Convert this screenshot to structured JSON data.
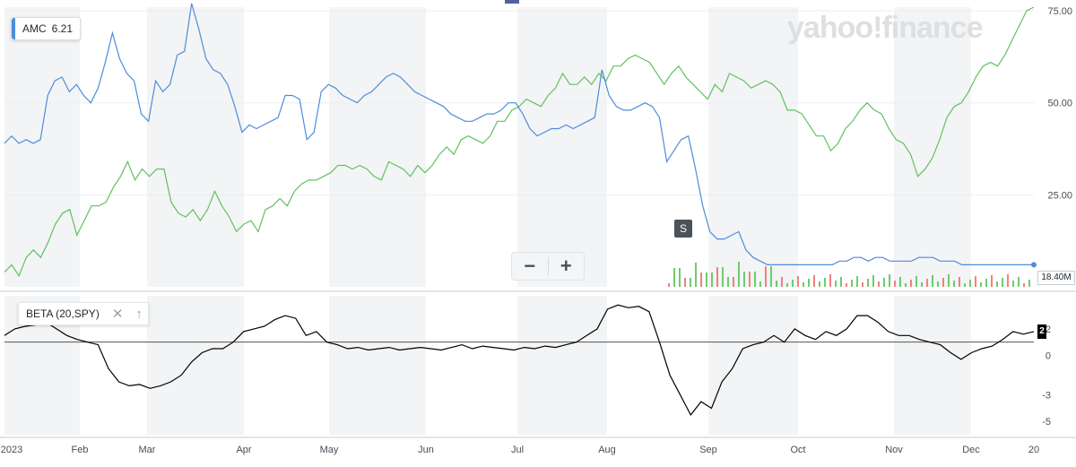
{
  "watermark": "yahoo!finance",
  "symbol_legend": {
    "symbol": "AMC",
    "value": "6.21"
  },
  "indicator_legend": {
    "label": "BETA (20,SPY)"
  },
  "split_marker": "S",
  "zoom": {
    "minus": "−",
    "plus": "+"
  },
  "price_badge": "18.40M",
  "beta_badge": "2",
  "colors": {
    "amc": "#4c8ddb",
    "comparison": "#60c160",
    "beta": "#000000",
    "vol_up": "#6dcc6d",
    "vol_down": "#f08080"
  },
  "chart_data": [
    {
      "type": "line",
      "title": "",
      "x_ticks": [
        "2023",
        "Feb",
        "Mar",
        "Apr",
        "May",
        "Jun",
        "Jul",
        "Aug",
        "Sep",
        "Oct",
        "Nov",
        "Dec",
        "20"
      ],
      "y_ticks": [
        "75.00",
        "50.00",
        "25.00"
      ],
      "ylim": [
        0,
        76
      ],
      "grid": true,
      "series": [
        {
          "name": "AMC",
          "y": [
            39,
            41,
            39,
            40,
            39,
            40,
            52,
            56,
            57,
            53,
            55,
            52,
            50,
            54,
            61,
            69,
            62,
            58,
            56,
            47,
            45,
            56,
            53,
            55,
            63,
            64,
            77,
            70,
            62,
            59,
            58,
            55,
            49,
            42,
            44,
            43,
            44,
            45,
            46,
            52,
            52,
            51,
            40,
            42,
            53,
            55,
            54,
            52,
            51,
            50,
            52,
            53,
            55,
            57,
            58,
            57,
            55,
            53,
            52,
            51,
            50,
            49,
            47,
            46,
            45,
            45,
            46,
            47,
            47,
            48,
            50,
            50,
            47,
            43,
            41,
            42,
            43,
            43,
            44,
            43,
            44,
            45,
            46,
            59,
            52,
            49,
            48,
            48,
            49,
            50,
            49,
            46,
            34,
            37,
            40,
            41,
            32,
            22,
            15,
            13,
            13,
            14,
            15,
            10,
            8,
            7,
            6,
            6,
            6,
            6,
            6,
            6,
            6,
            6,
            6,
            6,
            7,
            7,
            8,
            8,
            7,
            8,
            8,
            7,
            7,
            7,
            7,
            8,
            8,
            8,
            7,
            7,
            7,
            6,
            6,
            6,
            6,
            6,
            6,
            6,
            6,
            6,
            6,
            6
          ]
        },
        {
          "name": "",
          "y": [
            4,
            6,
            3,
            8,
            10,
            8,
            12,
            17,
            20,
            21,
            14,
            18,
            22,
            22,
            23,
            27,
            30,
            34,
            29,
            32,
            30,
            32,
            32,
            23,
            20,
            19,
            21,
            18,
            21,
            26,
            22,
            19,
            15,
            17,
            18,
            15,
            21,
            22,
            24,
            22,
            26,
            28,
            29,
            29,
            30,
            31,
            33,
            33,
            32,
            33,
            32,
            30,
            29,
            34,
            33,
            32,
            30,
            33,
            31,
            33,
            36,
            38,
            36,
            40,
            41,
            40,
            39,
            41,
            45,
            45,
            48,
            49,
            51,
            50,
            49,
            52,
            54,
            58,
            55,
            55,
            57,
            55,
            58,
            56,
            60,
            60,
            62,
            63,
            62,
            61,
            58,
            55,
            58,
            60,
            57,
            55,
            53,
            51,
            55,
            53,
            58,
            57,
            56,
            54,
            55,
            56,
            55,
            53,
            48,
            48,
            47,
            44,
            41,
            41,
            37,
            39,
            43,
            45,
            48,
            50,
            48,
            47,
            43,
            40,
            39,
            36,
            30,
            32,
            35,
            40,
            46,
            49,
            50,
            53,
            57,
            60,
            61,
            60,
            63,
            67,
            71,
            75,
            76
          ]
        }
      ]
    },
    {
      "type": "line",
      "title": "",
      "x_ticks": [
        "2023",
        "Feb",
        "Mar",
        "Apr",
        "May",
        "Jun",
        "Jul",
        "Aug",
        "Sep",
        "Oct",
        "Nov",
        "Dec",
        "20"
      ],
      "y_ticks": [
        "-5",
        "-3",
        "0",
        "2"
      ],
      "ylim": [
        -6,
        4.5
      ],
      "series": [
        {
          "name": "BETA (20,SPY)",
          "y": [
            1.5,
            2.0,
            2.2,
            2.3,
            2.5,
            2.0,
            1.5,
            1.2,
            1.0,
            0.8,
            -1.0,
            -2.0,
            -2.3,
            -2.2,
            -2.5,
            -2.3,
            -2.0,
            -1.5,
            -0.5,
            0.2,
            0.5,
            0.5,
            1.0,
            1.8,
            2.0,
            2.2,
            2.7,
            3.0,
            2.8,
            1.5,
            1.8,
            1.0,
            0.8,
            0.5,
            0.6,
            0.4,
            0.5,
            0.6,
            0.4,
            0.5,
            0.6,
            0.5,
            0.4,
            0.6,
            0.8,
            0.5,
            0.7,
            0.6,
            0.5,
            0.4,
            0.6,
            0.5,
            0.7,
            0.6,
            0.8,
            1.0,
            1.5,
            2.0,
            3.5,
            3.8,
            3.6,
            3.7,
            3.3,
            1.0,
            -1.5,
            -3.0,
            -4.5,
            -3.5,
            -4.0,
            -2.0,
            -1.0,
            0.5,
            0.8,
            1.0,
            1.5,
            1.0,
            2.0,
            1.5,
            1.2,
            1.8,
            1.5,
            2.0,
            3.0,
            3.0,
            2.5,
            1.8,
            1.5,
            1.5,
            1.2,
            1.0,
            0.8,
            0.2,
            -0.3,
            0.2,
            0.5,
            0.7,
            1.2,
            1.8,
            1.6,
            1.8
          ]
        }
      ]
    }
  ]
}
